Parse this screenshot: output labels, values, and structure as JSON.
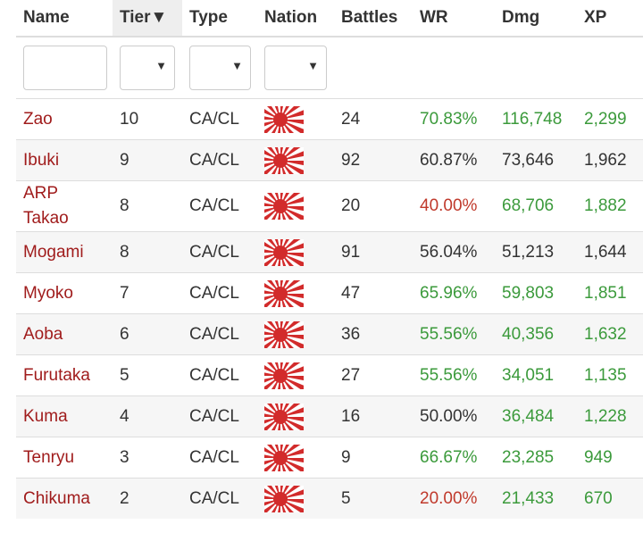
{
  "header": {
    "columns": [
      "Name",
      "Tier",
      "Type",
      "Nation",
      "Battles",
      "WR",
      "Dmg",
      "XP"
    ],
    "sort_indicator": "▼"
  },
  "table": {
    "rows": [
      {
        "name": "Zao",
        "tier": "10",
        "type": "CA/CL",
        "battles": "24",
        "wr": "70.83%",
        "dmg": "116,748",
        "xp": "2,299",
        "colors": {
          "wr": "#3b9a3b",
          "dmg": "#3b9a3b",
          "xp": "#3b9a3b"
        }
      },
      {
        "name": "Ibuki",
        "tier": "9",
        "type": "CA/CL",
        "battles": "92",
        "wr": "60.87%",
        "dmg": "73,646",
        "xp": "1,962",
        "colors": {
          "wr": "#333333",
          "dmg": "#333333",
          "xp": "#333333"
        }
      },
      {
        "name": "ARP Takao",
        "tier": "8",
        "type": "CA/CL",
        "battles": "20",
        "wr": "40.00%",
        "dmg": "68,706",
        "xp": "1,882",
        "colors": {
          "wr": "#c0392b",
          "dmg": "#3b9a3b",
          "xp": "#3b9a3b"
        }
      },
      {
        "name": "Mogami",
        "tier": "8",
        "type": "CA/CL",
        "battles": "91",
        "wr": "56.04%",
        "dmg": "51,213",
        "xp": "1,644",
        "colors": {
          "wr": "#333333",
          "dmg": "#333333",
          "xp": "#333333"
        }
      },
      {
        "name": "Myoko",
        "tier": "7",
        "type": "CA/CL",
        "battles": "47",
        "wr": "65.96%",
        "dmg": "59,803",
        "xp": "1,851",
        "colors": {
          "wr": "#3b9a3b",
          "dmg": "#3b9a3b",
          "xp": "#3b9a3b"
        }
      },
      {
        "name": "Aoba",
        "tier": "6",
        "type": "CA/CL",
        "battles": "36",
        "wr": "55.56%",
        "dmg": "40,356",
        "xp": "1,632",
        "colors": {
          "wr": "#3b9a3b",
          "dmg": "#3b9a3b",
          "xp": "#3b9a3b"
        }
      },
      {
        "name": "Furutaka",
        "tier": "5",
        "type": "CA/CL",
        "battles": "27",
        "wr": "55.56%",
        "dmg": "34,051",
        "xp": "1,135",
        "colors": {
          "wr": "#3b9a3b",
          "dmg": "#3b9a3b",
          "xp": "#3b9a3b"
        }
      },
      {
        "name": "Kuma",
        "tier": "4",
        "type": "CA/CL",
        "battles": "16",
        "wr": "50.00%",
        "dmg": "36,484",
        "xp": "1,228",
        "colors": {
          "wr": "#333333",
          "dmg": "#3b9a3b",
          "xp": "#3b9a3b"
        }
      },
      {
        "name": "Tenryu",
        "tier": "3",
        "type": "CA/CL",
        "battles": "9",
        "wr": "66.67%",
        "dmg": "23,285",
        "xp": "949",
        "colors": {
          "wr": "#3b9a3b",
          "dmg": "#3b9a3b",
          "xp": "#3b9a3b"
        }
      },
      {
        "name": "Chikuma",
        "tier": "2",
        "type": "CA/CL",
        "battles": "5",
        "wr": "20.00%",
        "dmg": "21,433",
        "xp": "670",
        "colors": {
          "wr": "#c0392b",
          "dmg": "#3b9a3b",
          "xp": "#3b9a3b"
        }
      }
    ]
  }
}
